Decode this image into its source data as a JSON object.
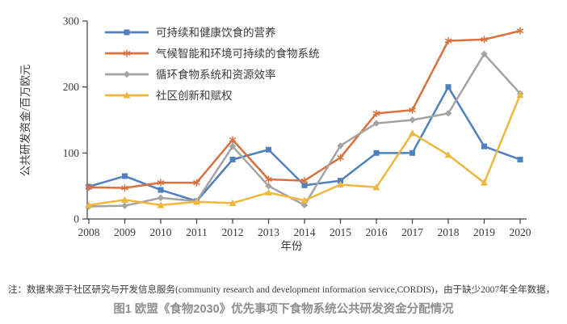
{
  "chart_data": {
    "type": "line",
    "title": "",
    "x": [
      2008,
      2009,
      2010,
      2011,
      2012,
      2013,
      2014,
      2015,
      2016,
      2017,
      2018,
      2019,
      2020
    ],
    "xlabel": "年份",
    "ylabel": "公共研发资金/百万欧元",
    "ylim": [
      0,
      300
    ],
    "yticks": [
      0,
      100,
      200,
      300
    ],
    "grid": false,
    "legend_position": "top-left-inside",
    "series": [
      {
        "name": "可持续和健康饮食的营养",
        "color": "#4E81BD",
        "marker": "square",
        "values": [
          49,
          65,
          44,
          27,
          90,
          105,
          51,
          58,
          100,
          100,
          200,
          110,
          90
        ]
      },
      {
        "name": "气候智能和环境可持续的食物系统",
        "color": "#D9713E",
        "marker": "asterisk",
        "values": [
          48,
          47,
          55,
          55,
          120,
          60,
          58,
          93,
          160,
          165,
          270,
          272,
          285
        ]
      },
      {
        "name": "循环食物系统和资源效率",
        "color": "#A3A3A3",
        "marker": "diamond",
        "values": [
          19,
          20,
          32,
          27,
          110,
          50,
          21,
          111,
          145,
          150,
          160,
          250,
          190
        ]
      },
      {
        "name": "社区创新和赋权",
        "color": "#EFB73E",
        "marker": "triangle",
        "values": [
          21,
          29,
          21,
          26,
          24,
          40,
          28,
          52,
          48,
          130,
          97,
          55,
          188
        ]
      }
    ]
  },
  "note": "注：数据来源于社区研究与开发信息服务(community research and development information service,CORDIS)，由于缺少2007年全年数据，",
  "caption": "图1 欧盟《食物2030》优先事项下食物系统公共研发资金分配情况"
}
